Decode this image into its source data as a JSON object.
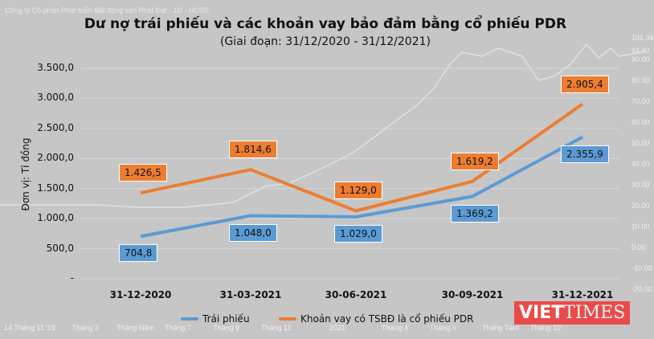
{
  "background": {
    "caption": "Công ty Cổ phần Phát triển Bất động sản Phát Đạt · 1D · HOSE",
    "right_axis": [
      "101.39",
      "94.40",
      "90.00",
      "80.00",
      "70.00",
      "60.00",
      "50.00",
      "40.00",
      "30.00",
      "20.00",
      "10.00",
      "0.00",
      "-10.00",
      "-20.00"
    ],
    "bottom_axis": [
      "14 Tháng 11 '19",
      "Tháng 3",
      "Tháng Năm",
      "Tháng 7",
      "Tháng 9",
      "Tháng 11",
      "2021",
      "Tháng 4",
      "Tháng 6",
      "Tháng Tám",
      "Tháng 10"
    ]
  },
  "watermark": "VIETTIMES",
  "chart_data": {
    "type": "line",
    "title": "Dư nợ trái phiếu và các khoản vay bảo đảm bằng cổ phiếu PDR",
    "subtitle": "(Giai đoạn: 31/12/2020 - 31/12/2021)",
    "ylabel": "Đơn vị: Tỉ đồng",
    "ylim": [
      0,
      3500
    ],
    "yticks": [
      "-",
      "500,0",
      "1.000,0",
      "1.500,0",
      "2.000,0",
      "2.500,0",
      "3.000,0",
      "3.500,0"
    ],
    "categories": [
      "31-12-2020",
      "31-03-2021",
      "30-06-2021",
      "30-09-2021",
      "31-12-2021"
    ],
    "legend_position": "bottom",
    "series": [
      {
        "name": "Trái phiếu",
        "color": "#5b9bd5",
        "values": [
          704.8,
          1048.0,
          1029.0,
          1369.2,
          2355.9
        ],
        "labels": [
          "704,8",
          "1.048,0",
          "1.029,0",
          "1.369,2",
          "2.355,9"
        ]
      },
      {
        "name": "Khoản vay có TSBĐ là cổ phiếu PDR",
        "color": "#ed7d31",
        "values": [
          1426.5,
          1814.6,
          1129.0,
          1619.2,
          2905.4
        ],
        "labels": [
          "1.426,5",
          "1.814,6",
          "1.129,0",
          "1.619,2",
          "2.905,4"
        ]
      }
    ]
  }
}
